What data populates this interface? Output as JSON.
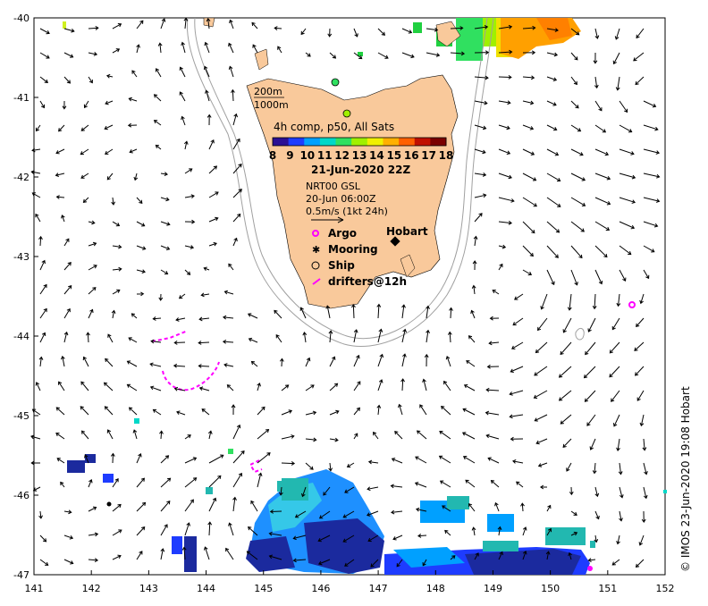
{
  "map": {
    "lon_ticks": [
      "141",
      "142",
      "143",
      "144",
      "145",
      "146",
      "147",
      "148",
      "149",
      "150",
      "151",
      "152"
    ],
    "lat_ticks": [
      "-40",
      "-41",
      "-42",
      "-43",
      "-44",
      "-45",
      "-46",
      "-47"
    ],
    "lon_range": [
      141,
      152
    ],
    "lat_range": [
      -47,
      -40
    ],
    "isobath_labels": [
      "200m",
      "1000m"
    ],
    "city_label": "Hobart"
  },
  "colorbar": {
    "title": "4h comp, p50, All Sats",
    "ticks": [
      "8",
      "9",
      "10",
      "11",
      "12",
      "13",
      "14",
      "15",
      "16",
      "17",
      "18"
    ],
    "date": "21-Jun-2020 22Z",
    "colors": [
      "#2b0f94",
      "#1e3cff",
      "#00a0ff",
      "#00d8c8",
      "#30e060",
      "#a0f000",
      "#f0f000",
      "#ffb000",
      "#ff6000",
      "#c01000",
      "#7a0000"
    ]
  },
  "current_info": {
    "source": "NRT00 GSL",
    "time": "20-Jun 06:00Z",
    "scale": "0.5m/s (1kt 24h)"
  },
  "legend": {
    "argo": "Argo",
    "mooring": "Mooring",
    "ship": "Ship",
    "drifters": "drifters@12h"
  },
  "credit": "© IMOS 23-Jun-2020 19:08 Hobart",
  "colors": {
    "land": "#f9c99b",
    "argo": "#ff00ff",
    "drifter": "#ff00ff",
    "isobath": "#a0a0a0"
  }
}
